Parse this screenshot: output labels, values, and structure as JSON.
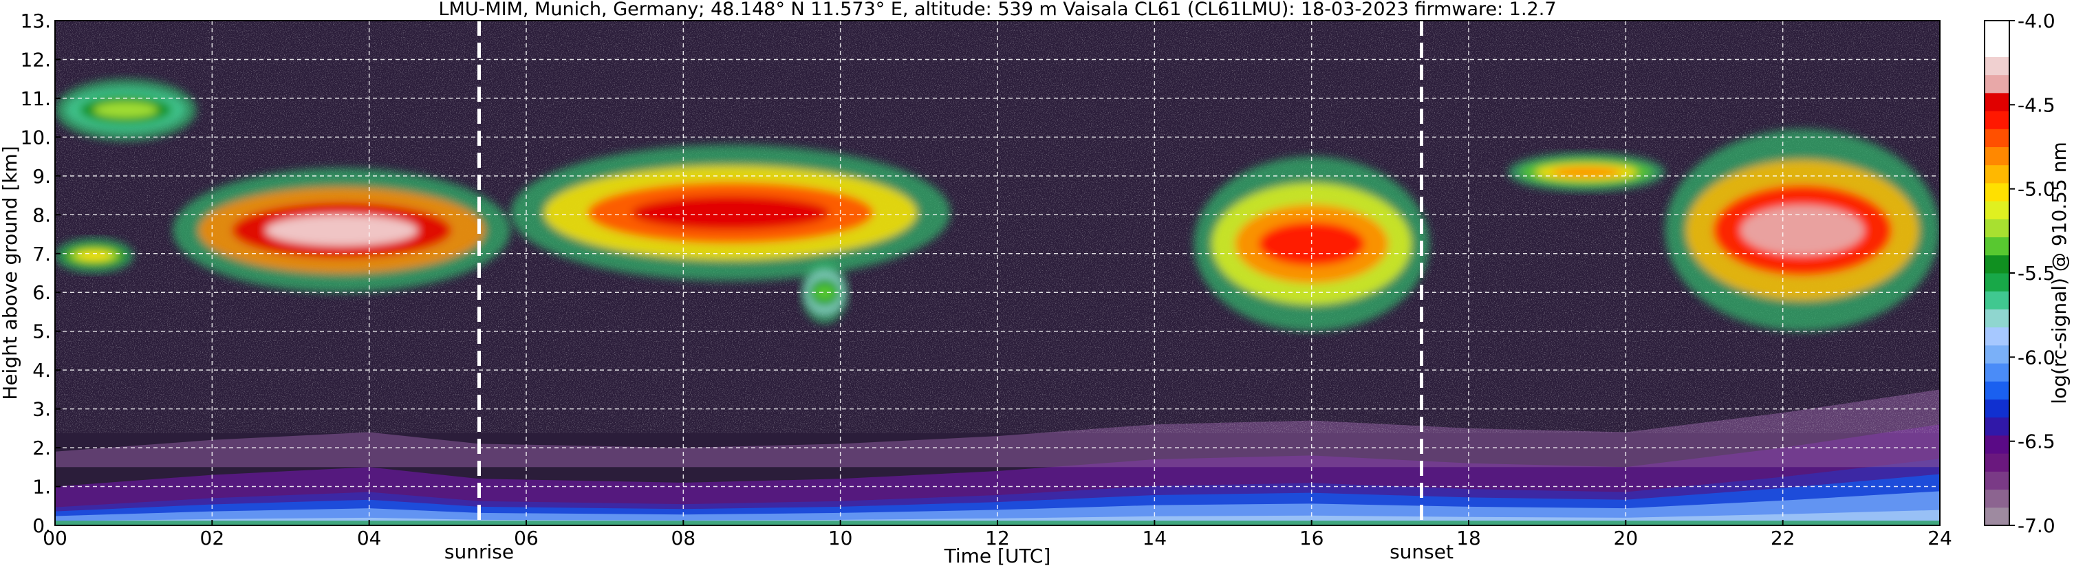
{
  "chart_data": {
    "type": "heatmap",
    "title": "LMU-MIM, Munich, Germany; 48.148° N 11.573° E, altitude: 539 m    Vaisala CL61 (CL61LMU): 18-03-2023    firmware: 1.2.7",
    "xlabel": "Time [UTC]",
    "ylabel": "Height above ground [km]",
    "xlim": [
      0,
      24
    ],
    "ylim": [
      0,
      13
    ],
    "x_ticks": [
      0,
      2,
      4,
      6,
      8,
      10,
      12,
      14,
      16,
      18,
      20,
      22,
      24
    ],
    "x_tick_labels": [
      "00",
      "02",
      "04",
      "06",
      "08",
      "10",
      "12",
      "14",
      "16",
      "18",
      "20",
      "22",
      "24"
    ],
    "y_ticks": [
      0,
      1,
      2,
      3,
      4,
      5,
      6,
      7,
      8,
      9,
      10,
      11,
      12,
      13
    ],
    "y_tick_labels": [
      "0.",
      "1.",
      "2.",
      "3.",
      "4.",
      "5.",
      "6.",
      "7.",
      "8.",
      "9.",
      "10.",
      "11.",
      "12.",
      "13."
    ],
    "grid": true,
    "markers": [
      {
        "label": "sunrise",
        "x": 5.4
      },
      {
        "label": "sunset",
        "x": 17.4
      }
    ],
    "colorbar": {
      "label": "log(rc-signal) @ 910.55 nm",
      "range": [
        -7.0,
        -4.0
      ],
      "ticks": [
        -7.0,
        -6.5,
        -6.0,
        -5.5,
        -5.0,
        -4.5,
        -4.0
      ],
      "tick_labels": [
        "-7.0",
        "-6.5",
        "-6.0",
        "-5.5",
        "-5.0",
        "-4.5",
        "-4.0"
      ],
      "colors": [
        "#9e8aa0",
        "#8c6490",
        "#7a3a86",
        "#6a187e",
        "#5a0a86",
        "#3018a8",
        "#1030d0",
        "#1a60f0",
        "#4a8cf8",
        "#7ab0f8",
        "#a6c8ff",
        "#8fd6cf",
        "#40c890",
        "#18a848",
        "#109020",
        "#58c830",
        "#a8e030",
        "#e0f020",
        "#ffe000",
        "#ffb800",
        "#ff8800",
        "#ff5000",
        "#ff1800",
        "#e00000",
        "#e8a8a8",
        "#f0d0d0",
        "#ffffff",
        "#ffffff"
      ]
    },
    "layers": [
      {
        "name": "aerosol",
        "points": [
          [
            0,
            0.6
          ],
          [
            2,
            0.9
          ],
          [
            4,
            1.1
          ],
          [
            5.4,
            0.8
          ],
          [
            8,
            0.7
          ],
          [
            10,
            0.8
          ],
          [
            12,
            1.0
          ],
          [
            14,
            1.3
          ],
          [
            16,
            1.4
          ],
          [
            18,
            1.2
          ],
          [
            20,
            1.1
          ],
          [
            22,
            1.6
          ],
          [
            24,
            2.2
          ]
        ]
      }
    ],
    "clouds": [
      {
        "t": [
          0.0,
          1.8
        ],
        "h": [
          9.9,
          11.5
        ],
        "level": -5.2
      },
      {
        "t": [
          0.0,
          1.0
        ],
        "h": [
          6.5,
          7.4
        ],
        "level": -5.0
      },
      {
        "t": [
          1.5,
          5.8
        ],
        "h": [
          6.0,
          9.2
        ],
        "level": -4.3
      },
      {
        "t": [
          5.8,
          11.4
        ],
        "h": [
          6.3,
          9.8
        ],
        "level": -4.5
      },
      {
        "t": [
          9.5,
          10.1
        ],
        "h": [
          5.2,
          6.8
        ],
        "level": -5.3
      },
      {
        "t": [
          14.5,
          17.5
        ],
        "h": [
          5.0,
          9.5
        ],
        "level": -4.6
      },
      {
        "t": [
          18.5,
          20.5
        ],
        "h": [
          8.6,
          9.6
        ],
        "level": -4.8
      },
      {
        "t": [
          20.5,
          24.0
        ],
        "h": [
          5.0,
          10.2
        ],
        "level": -4.4
      }
    ]
  }
}
